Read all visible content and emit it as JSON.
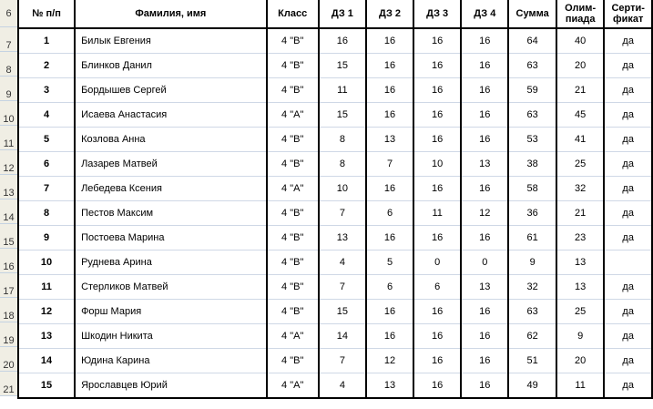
{
  "row_numbers": [
    "6",
    "7",
    "8",
    "9",
    "10",
    "11",
    "12",
    "13",
    "14",
    "15",
    "16",
    "17",
    "18",
    "19",
    "20",
    "21"
  ],
  "headers": {
    "num": "№ п/п",
    "name": "Фамилия, имя",
    "class": "Класс",
    "dz1": "ДЗ 1",
    "dz2": "ДЗ 2",
    "dz3": "ДЗ 3",
    "dz4": "ДЗ 4",
    "sum": "Сумма",
    "olymp_line1": "Олим-",
    "olymp_line2": "пиада",
    "cert_line1": "Серти-",
    "cert_line2": "фикат"
  },
  "rows": [
    {
      "num": "1",
      "name": "Билык Евгения",
      "class": "4 \"В\"",
      "dz1": "16",
      "dz2": "16",
      "dz3": "16",
      "dz4": "16",
      "sum": "64",
      "olymp": "40",
      "cert": "да"
    },
    {
      "num": "2",
      "name": "Блинков Данил",
      "class": "4 \"В\"",
      "dz1": "15",
      "dz2": "16",
      "dz3": "16",
      "dz4": "16",
      "sum": "63",
      "olymp": "20",
      "cert": "да"
    },
    {
      "num": "3",
      "name": "Бордышев Сергей",
      "class": "4 \"В\"",
      "dz1": "11",
      "dz2": "16",
      "dz3": "16",
      "dz4": "16",
      "sum": "59",
      "olymp": "21",
      "cert": "да"
    },
    {
      "num": "4",
      "name": "Исаева Анастасия",
      "class": "4 \"А\"",
      "dz1": "15",
      "dz2": "16",
      "dz3": "16",
      "dz4": "16",
      "sum": "63",
      "olymp": "45",
      "cert": "да"
    },
    {
      "num": "5",
      "name": "Козлова Анна",
      "class": "4 \"В\"",
      "dz1": "8",
      "dz2": "13",
      "dz3": "16",
      "dz4": "16",
      "sum": "53",
      "olymp": "41",
      "cert": "да"
    },
    {
      "num": "6",
      "name": "Лазарев Матвей",
      "class": "4 \"В\"",
      "dz1": "8",
      "dz2": "7",
      "dz3": "10",
      "dz4": "13",
      "sum": "38",
      "olymp": "25",
      "cert": "да"
    },
    {
      "num": "7",
      "name": "Лебедева Ксения",
      "class": "4 \"А\"",
      "dz1": "10",
      "dz2": "16",
      "dz3": "16",
      "dz4": "16",
      "sum": "58",
      "olymp": "32",
      "cert": "да"
    },
    {
      "num": "8",
      "name": "Пестов Максим",
      "class": "4 \"В\"",
      "dz1": "7",
      "dz2": "6",
      "dz3": "11",
      "dz4": "12",
      "sum": "36",
      "olymp": "21",
      "cert": "да"
    },
    {
      "num": "9",
      "name": "Постоева Марина",
      "class": "4 \"В\"",
      "dz1": "13",
      "dz2": "16",
      "dz3": "16",
      "dz4": "16",
      "sum": "61",
      "olymp": "23",
      "cert": "да"
    },
    {
      "num": "10",
      "name": "Руднева Арина",
      "class": "4 \"В\"",
      "dz1": "4",
      "dz2": "5",
      "dz3": "0",
      "dz4": "0",
      "sum": "9",
      "olymp": "13",
      "cert": ""
    },
    {
      "num": "11",
      "name": "Стерликов Матвей",
      "class": "4 \"В\"",
      "dz1": "7",
      "dz2": "6",
      "dz3": "6",
      "dz4": "13",
      "sum": "32",
      "olymp": "13",
      "cert": "да"
    },
    {
      "num": "12",
      "name": "Форш Мария",
      "class": "4 \"В\"",
      "dz1": "15",
      "dz2": "16",
      "dz3": "16",
      "dz4": "16",
      "sum": "63",
      "olymp": "25",
      "cert": "да"
    },
    {
      "num": "13",
      "name": "Шкодин Никита",
      "class": "4 \"А\"",
      "dz1": "14",
      "dz2": "16",
      "dz3": "16",
      "dz4": "16",
      "sum": "62",
      "olymp": "9",
      "cert": "да"
    },
    {
      "num": "14",
      "name": "Юдина Карина",
      "class": "4 \"В\"",
      "dz1": "7",
      "dz2": "12",
      "dz3": "16",
      "dz4": "16",
      "sum": "51",
      "olymp": "20",
      "cert": "да"
    },
    {
      "num": "15",
      "name": "Ярославцев Юрий",
      "class": "4 \"А\"",
      "dz1": "4",
      "dz2": "13",
      "dz3": "16",
      "dz4": "16",
      "sum": "49",
      "olymp": "11",
      "cert": "да"
    }
  ]
}
